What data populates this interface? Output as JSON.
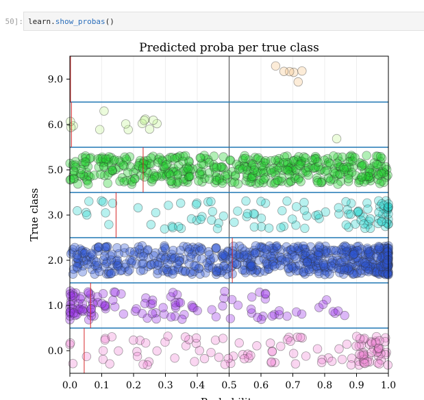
{
  "cell": {
    "prompt": "50]:",
    "code_obj": "learn.",
    "code_fn": "show_probas",
    "code_args": "()"
  },
  "chart_data": {
    "type": "scatter",
    "title": "Predicted proba per true class",
    "xlabel": "Probability",
    "ylabel": "True class",
    "xlim": [
      0.0,
      1.0
    ],
    "ylim": [
      -0.5,
      9.5
    ],
    "x_ticks": [
      "0.0",
      "0.1",
      "0.2",
      "0.3",
      "0.4",
      "0.5",
      "0.6",
      "0.7",
      "0.8",
      "0.9",
      "1.0"
    ],
    "y_ticks": [
      "0.0",
      "1.0",
      "2.0",
      "3.0",
      "5.0",
      "6.0",
      "9.0"
    ],
    "decision_threshold": 0.5,
    "colors": {
      "separator": "#1f77b4",
      "threshold_line": "#444444",
      "class_marker": "#d62728",
      "dot_edge": "#333333"
    },
    "grid": true,
    "series": [
      {
        "class": 0.0,
        "color": "#f08ad8",
        "marker_x": 0.045,
        "count": 120,
        "skew": "mixed"
      },
      {
        "class": 1.0,
        "color": "#9a35e8",
        "marker_x": 0.065,
        "count": 120,
        "skew": "low"
      },
      {
        "class": 2.0,
        "color": "#2d55d4",
        "marker_x": 0.51,
        "count": 600,
        "skew": "high"
      },
      {
        "class": 3.0,
        "color": "#30d8d0",
        "marker_x": 0.145,
        "count": 110,
        "skew": "high"
      },
      {
        "class": 5.0,
        "color": "#22d02f",
        "marker_x": 0.23,
        "count": 450,
        "skew": "uniform"
      },
      {
        "class": 6.0,
        "color": "#c8f59a",
        "marker_x": 0.005,
        "count": 14,
        "skew": "low"
      },
      {
        "class": 9.0,
        "color": "#f6c98e",
        "marker_x": 0.002,
        "count": 6,
        "skew": "mid"
      }
    ]
  }
}
